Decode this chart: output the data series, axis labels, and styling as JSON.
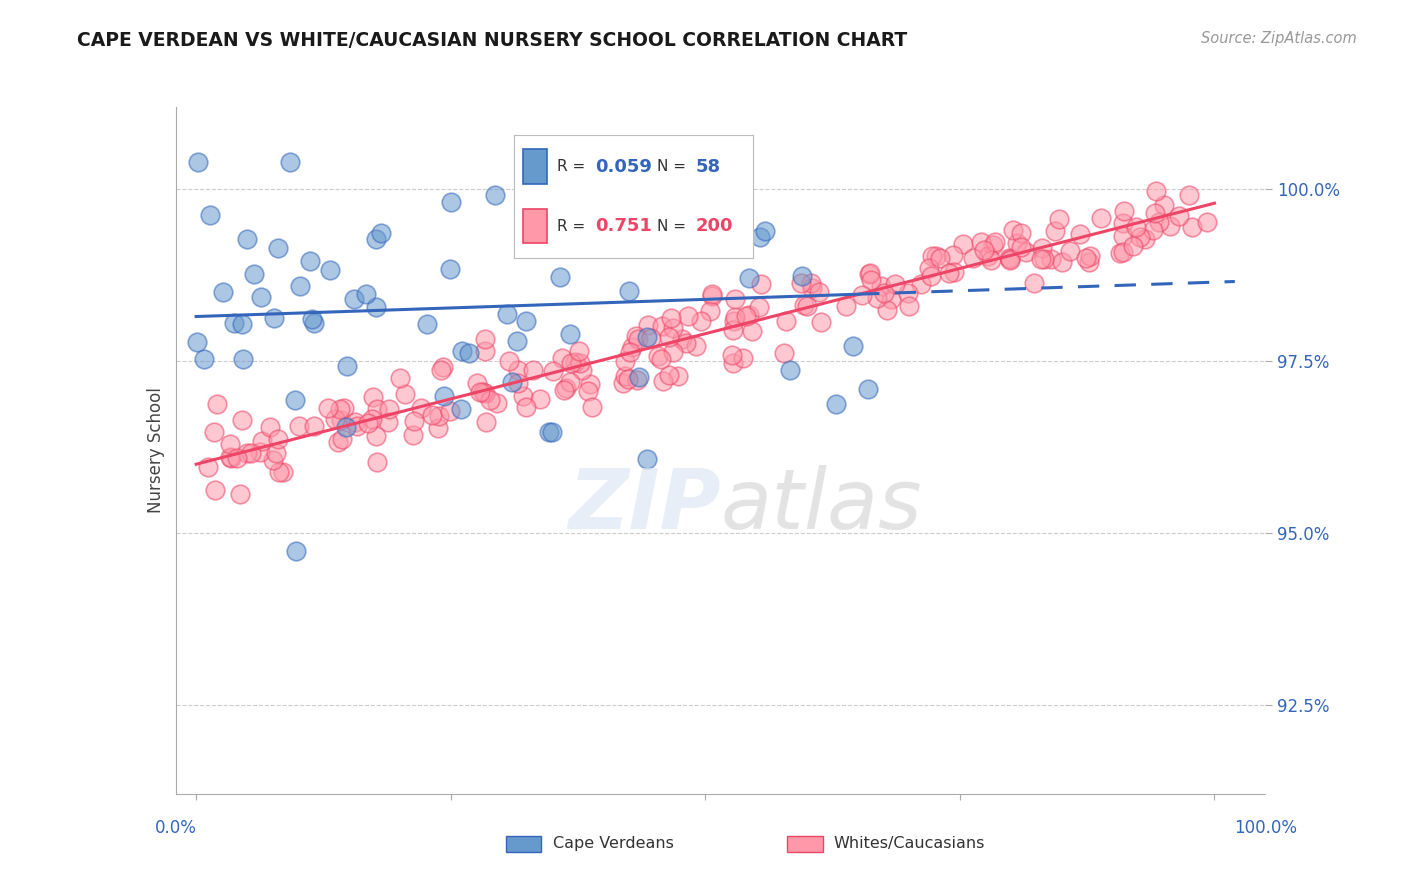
{
  "title": "CAPE VERDEAN VS WHITE/CAUCASIAN NURSERY SCHOOL CORRELATION CHART",
  "source": "Source: ZipAtlas.com",
  "ylabel": "Nursery School",
  "legend_label1": "Cape Verdeans",
  "legend_label2": "Whites/Caucasians",
  "R1": 0.059,
  "N1": 58,
  "R2": 0.751,
  "N2": 200,
  "color_blue": "#6699cc",
  "color_pink": "#ff99aa",
  "color_blue_dark": "#3366bb",
  "color_pink_dark": "#ee4466",
  "yticks": [
    92.5,
    95.0,
    97.5,
    100.0
  ],
  "ytick_labels": [
    "92.5%",
    "95.0%",
    "97.5%",
    "100.0%"
  ],
  "ymin": 91.2,
  "ymax": 101.2,
  "xmin": -0.02,
  "xmax": 1.05
}
